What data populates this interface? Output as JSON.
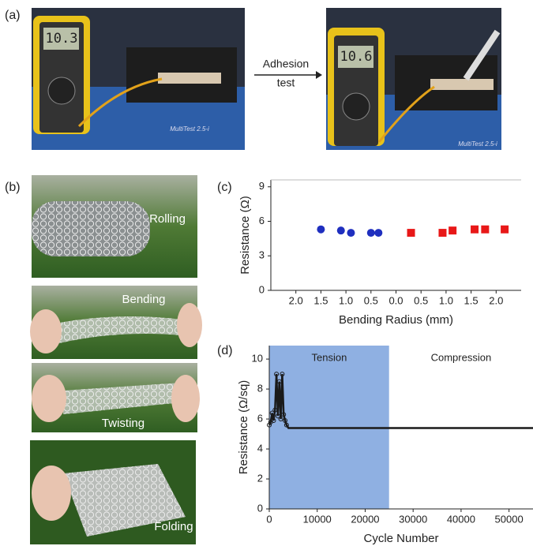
{
  "panels": {
    "a": "(a)",
    "b": "(b)",
    "c": "(c)",
    "d": "(d)"
  },
  "adhesion": {
    "before_reading": "10.3",
    "after_reading": "10.6",
    "device_label": "MultiTest 2.5-i",
    "arrow_label": [
      "Adhesion",
      "test"
    ]
  },
  "flex_photos": [
    "Rolling",
    "Bending",
    "Twisting",
    "Folding"
  ],
  "chart_data": [
    {
      "type": "scatter",
      "x_label": "Bending Radius (mm)",
      "y_label": "Resistance (Ω)",
      "xlim": [
        -2.5,
        2.5
      ],
      "ylim": [
        0,
        9.6
      ],
      "xticks": [
        {
          "value": -2,
          "label": "2.0"
        },
        {
          "value": -1.5,
          "label": "1.5"
        },
        {
          "value": -1,
          "label": "1.0"
        },
        {
          "value": -0.5,
          "label": "0.5"
        },
        {
          "value": 0,
          "label": "0.0"
        },
        {
          "value": 0.5,
          "label": "0.5"
        },
        {
          "value": 1,
          "label": "1.0"
        },
        {
          "value": 1.5,
          "label": "1.5"
        },
        {
          "value": 2,
          "label": "2.0"
        }
      ],
      "yticks": [
        0,
        3,
        6,
        9
      ],
      "series": [
        {
          "color": "#1f2fbf",
          "marker": "circle",
          "x": [
            -1.5,
            -1.1,
            -0.9,
            -0.5,
            -0.35
          ],
          "values": [
            5.3,
            5.2,
            5.0,
            5.0,
            5.0
          ]
        },
        {
          "color": "#e81818",
          "marker": "square",
          "x": [
            0.3,
            0.93,
            1.13,
            1.57,
            1.78,
            2.17
          ],
          "values": [
            5.0,
            5.0,
            5.2,
            5.3,
            5.3,
            5.3
          ]
        }
      ]
    },
    {
      "type": "line",
      "x_label": "Cycle Number",
      "y_label": "Resistance (Ω/sq)",
      "xlim": [
        0,
        55000
      ],
      "ylim": [
        0,
        10.9
      ],
      "xticks": [
        0,
        10000,
        20000,
        30000,
        40000,
        50000
      ],
      "yticks": [
        0,
        2,
        4,
        6,
        8,
        10
      ],
      "regions": [
        {
          "label": "Tension",
          "x0": 0,
          "x1": 25000,
          "color": "#8fb0e2"
        },
        {
          "label": "Compression",
          "x0": 25000,
          "x1": 55000,
          "color": "#ffffff"
        }
      ],
      "series": [
        {
          "color": "#1a1a1a",
          "x": [
            0,
            300,
            600,
            900,
            1200,
            1500,
            1800,
            2100,
            2400,
            2700,
            3000,
            3300,
            3600,
            4000,
            5000,
            8000,
            15000,
            25000,
            35000,
            45000,
            55000
          ],
          "values": [
            5.6,
            5.8,
            6.4,
            5.9,
            6.6,
            9.0,
            6.2,
            8.5,
            6.0,
            9.0,
            6.3,
            5.9,
            5.6,
            5.4,
            5.4,
            5.4,
            5.4,
            5.4,
            5.4,
            5.4,
            5.4
          ]
        }
      ]
    }
  ]
}
